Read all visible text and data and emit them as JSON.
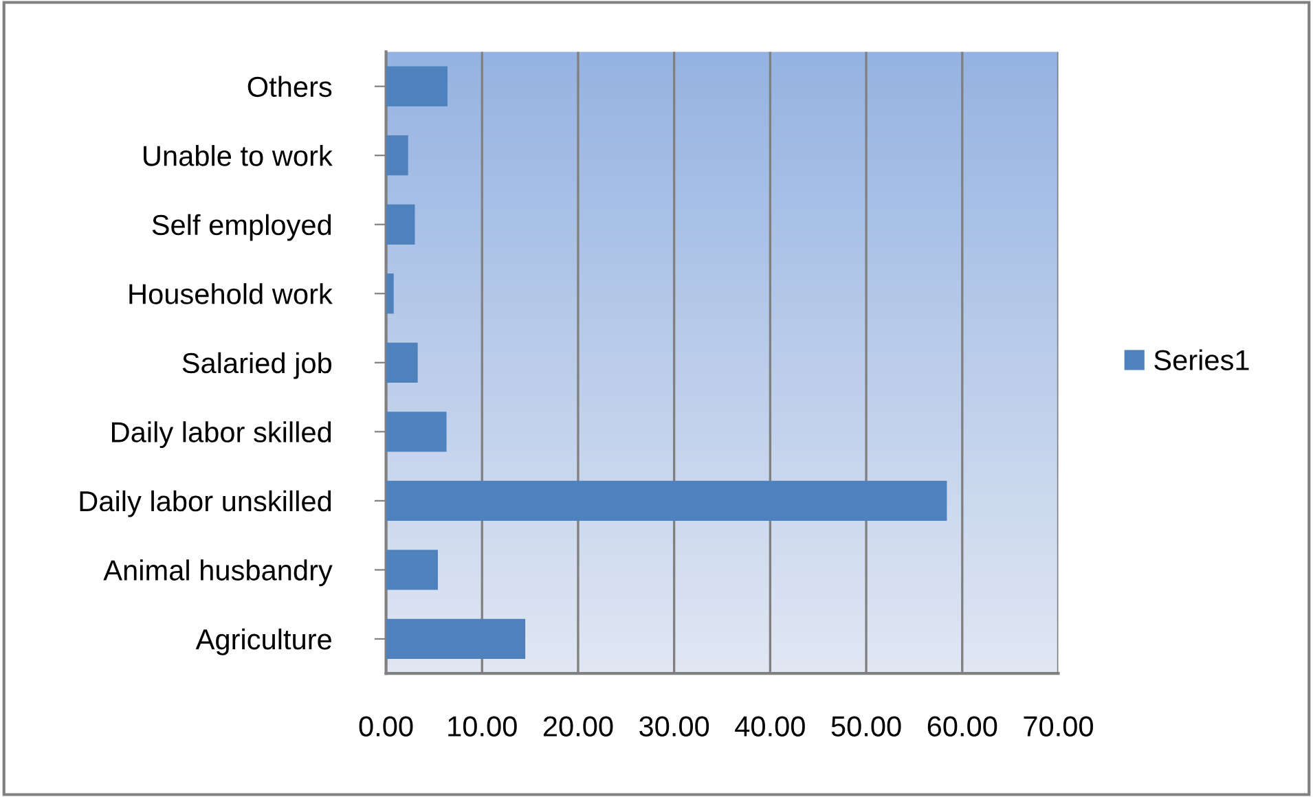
{
  "chart_data": {
    "type": "bar",
    "orientation": "horizontal",
    "categories": [
      "Others",
      "Unable to work",
      "Self employed",
      "Household work",
      "Salaried job",
      "Daily labor skilled",
      "Daily labor unskilled",
      "Animal husbandry",
      "Agriculture"
    ],
    "series": [
      {
        "name": "Series1",
        "color": "#4f81bd",
        "values": [
          6.4,
          2.3,
          3.0,
          0.8,
          3.3,
          6.3,
          58.4,
          5.4,
          14.5
        ]
      }
    ],
    "xlim": [
      0,
      70
    ],
    "xticks": [
      {
        "value": 0,
        "label": "0.00"
      },
      {
        "value": 10,
        "label": "10.00"
      },
      {
        "value": 20,
        "label": "20.00"
      },
      {
        "value": 30,
        "label": "30.00"
      },
      {
        "value": 40,
        "label": "40.00"
      },
      {
        "value": 50,
        "label": "50.00"
      },
      {
        "value": 60,
        "label": "60.00"
      },
      {
        "value": 70,
        "label": "70.00"
      }
    ],
    "grid": "x",
    "legend": "right"
  }
}
